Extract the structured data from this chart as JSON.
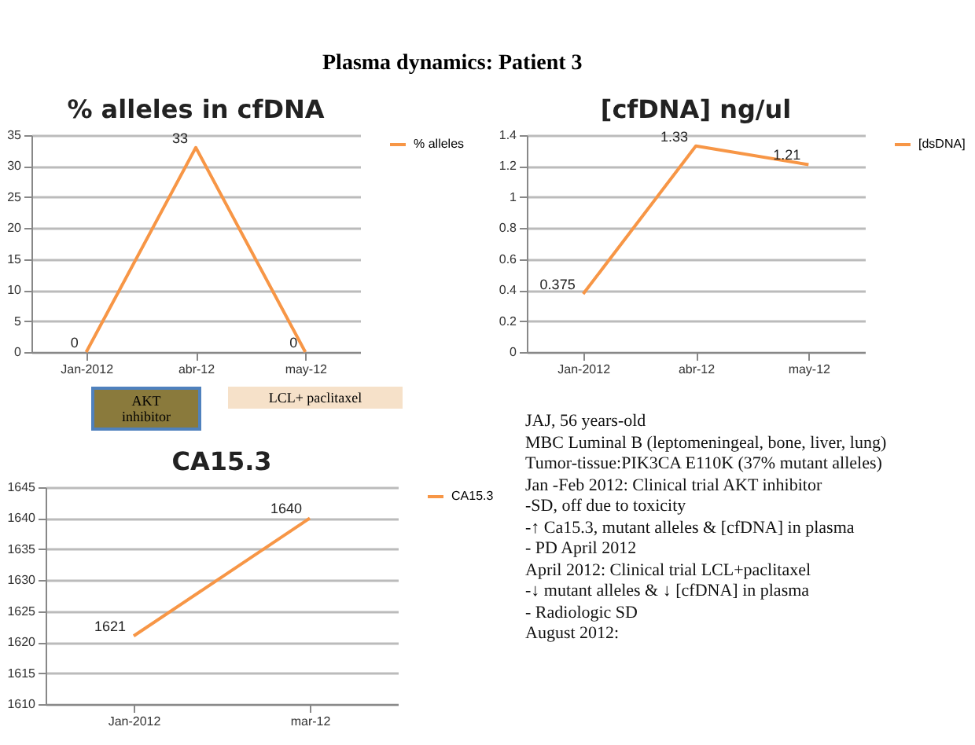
{
  "chart_data": [
    {
      "type": "line",
      "title": "% alleles in cfDNA",
      "categories": [
        "Jan-2012",
        "abr-12",
        "may-12"
      ],
      "series": [
        {
          "name": "% alleles",
          "color": "#f79646",
          "values": [
            0,
            33,
            0
          ]
        }
      ],
      "ylim": [
        0,
        35
      ],
      "yticks": [
        0,
        5,
        10,
        15,
        20,
        25,
        30,
        35
      ],
      "grid": "y",
      "legend": "right",
      "data_labels": true,
      "annotations": [
        "AKT inhibitor",
        "LCL+ paclitaxel"
      ]
    },
    {
      "type": "line",
      "title": "[cfDNA] ng/ul",
      "categories": [
        "Jan-2012",
        "abr-12",
        "may-12"
      ],
      "series": [
        {
          "name": "[dsDNA]",
          "color": "#f79646",
          "values": [
            0.375,
            1.33,
            1.21
          ]
        }
      ],
      "ylim": [
        0,
        1.4
      ],
      "yticks": [
        0,
        0.2,
        0.4,
        0.6,
        0.8,
        1,
        1.2,
        1.4
      ],
      "grid": "y",
      "legend": "right",
      "data_labels": true
    },
    {
      "type": "line",
      "title": "CA15.3",
      "categories": [
        "Jan-2012",
        "mar-12"
      ],
      "series": [
        {
          "name": "CA15.3",
          "color": "#f79646",
          "values": [
            1621,
            1640
          ]
        }
      ],
      "ylim": [
        1610,
        1645
      ],
      "yticks": [
        1610,
        1615,
        1620,
        1625,
        1630,
        1635,
        1640,
        1645
      ],
      "grid": "y",
      "legend": "right",
      "data_labels": true
    },
    {
      "type": "other",
      "title": "Plasma dynamics: Patient 3",
      "annotations": [
        "JAJ, 56 years-old",
        "MBC Luminal B (leptomeningeal, bone, liver, lung)",
        "Tumor-tissue:PIK3CA E110K (37% mutant alleles)",
        "Jan -Feb 2012: Clinical trial AKT inhibitor",
        "-SD, off due to toxicity",
        "-↑ Ca15.3, mutant alleles & [cfDNA] in plasma",
        "- PD April 2012",
        "April 2012: Clinical trial LCL+paclitaxel",
        "-↓ mutant alleles & ↓ [cfDNA] in plasma",
        "- Radiologic SD",
        "August 2012:"
      ]
    }
  ]
}
